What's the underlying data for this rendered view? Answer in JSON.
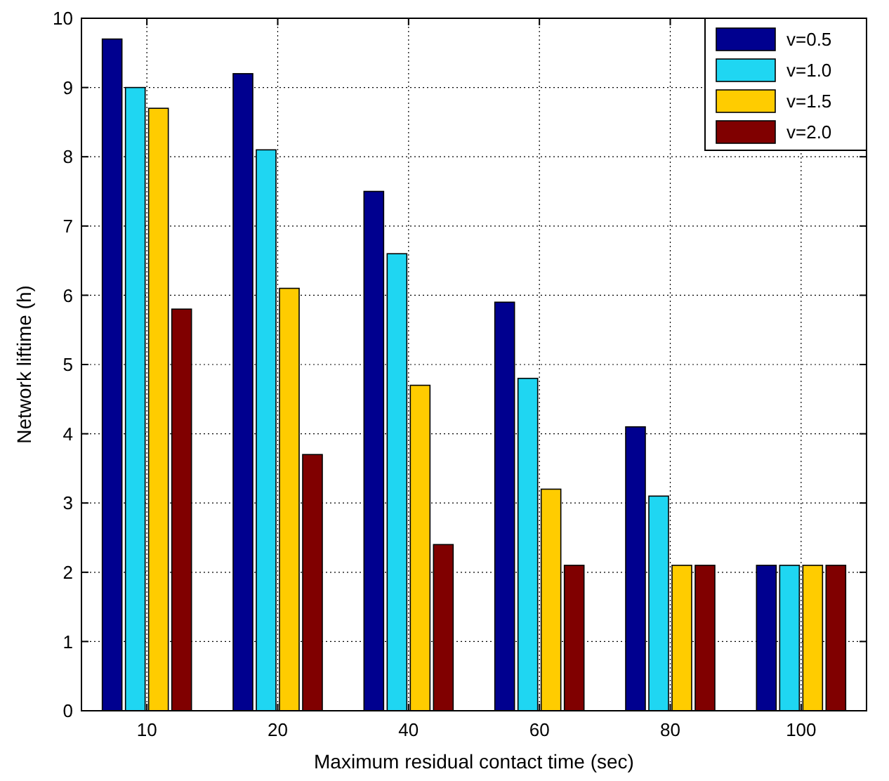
{
  "chart_data": {
    "type": "bar",
    "xlabel": "Maximum residual contact time (sec)",
    "ylabel": "Network liftime (h)",
    "categories": [
      "10",
      "20",
      "40",
      "60",
      "80",
      "100"
    ],
    "series": [
      {
        "name": "v=0.5",
        "color": "#00008f",
        "values": [
          9.7,
          9.2,
          7.5,
          5.9,
          4.1,
          2.1
        ]
      },
      {
        "name": "v=1.0",
        "color": "#1fd6f2",
        "values": [
          9.0,
          8.1,
          6.6,
          4.8,
          3.1,
          2.1
        ]
      },
      {
        "name": "v=1.5",
        "color": "#ffcc00",
        "values": [
          8.7,
          6.1,
          4.7,
          3.2,
          2.1,
          2.1
        ]
      },
      {
        "name": "v=2.0",
        "color": "#800000",
        "values": [
          5.8,
          3.7,
          2.4,
          2.1,
          2.1,
          2.1
        ]
      }
    ],
    "ylim": [
      0,
      10
    ],
    "yticks": [
      0,
      1,
      2,
      3,
      4,
      5,
      6,
      7,
      8,
      9,
      10
    ],
    "grid": true,
    "legend": "top right"
  }
}
